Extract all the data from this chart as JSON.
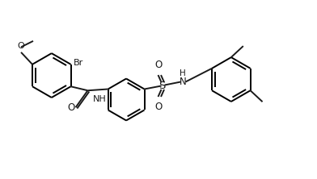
{
  "bg_color": "#ffffff",
  "line_color": "#1a1a1a",
  "bond_lw": 1.4,
  "fig_w": 3.92,
  "fig_h": 2.22,
  "dpi": 100,
  "xlim": [
    0,
    7.8
  ],
  "ylim": [
    0.0,
    4.2
  ]
}
